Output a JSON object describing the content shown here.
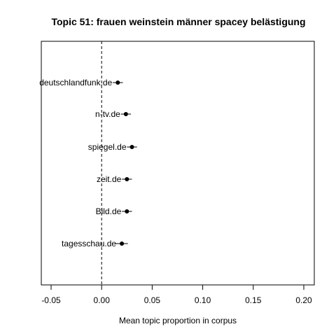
{
  "chart_data": {
    "type": "scatter",
    "title": "Topic 51: frauen weinstein männer spacey belästigung",
    "xlabel": "Mean topic proportion in corpus",
    "ylabel": "",
    "xlim": [
      -0.053,
      0.21
    ],
    "x_ticks": [
      -0.05,
      0.0,
      0.05,
      0.1,
      0.15,
      0.2
    ],
    "x_tick_labels": [
      "-0.05",
      "0.00",
      "0.05",
      "0.10",
      "0.15",
      "0.20"
    ],
    "reference_line_x": 0,
    "categories": [
      "deutschlandfunk.de",
      "n-tv.de",
      "spiegel.de",
      "zeit.de",
      "Bild.de",
      "tagesschau.de"
    ],
    "values": [
      0.016,
      0.024,
      0.03,
      0.025,
      0.025,
      0.02
    ],
    "ci_low": [
      0.011,
      0.019,
      0.025,
      0.02,
      0.02,
      0.014
    ],
    "ci_high": [
      0.021,
      0.029,
      0.035,
      0.03,
      0.03,
      0.026
    ],
    "grid": false,
    "legend": "none"
  }
}
